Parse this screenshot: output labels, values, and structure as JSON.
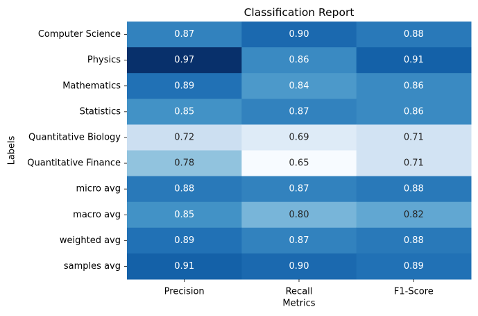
{
  "chart_data": {
    "type": "heatmap",
    "title": "Classification Report",
    "xlabel": "Metrics",
    "ylabel": "Labels",
    "columns": [
      "Precision",
      "Recall",
      "F1-Score"
    ],
    "rows": [
      "Computer Science",
      "Physics",
      "Mathematics",
      "Statistics",
      "Quantitative Biology",
      "Quantitative Finance",
      "micro avg",
      "macro avg",
      "weighted avg",
      "samples avg"
    ],
    "values": [
      [
        0.87,
        0.9,
        0.88
      ],
      [
        0.97,
        0.86,
        0.91
      ],
      [
        0.89,
        0.84,
        0.86
      ],
      [
        0.85,
        0.87,
        0.86
      ],
      [
        0.72,
        0.69,
        0.71
      ],
      [
        0.78,
        0.65,
        0.71
      ],
      [
        0.88,
        0.87,
        0.88
      ],
      [
        0.85,
        0.8,
        0.82
      ],
      [
        0.89,
        0.87,
        0.88
      ],
      [
        0.91,
        0.9,
        0.89
      ]
    ],
    "value_format": "2 decimals",
    "colormap": "Blues",
    "vmin": 0.65,
    "vmax": 0.97,
    "colorbar": false,
    "annotations": true
  }
}
